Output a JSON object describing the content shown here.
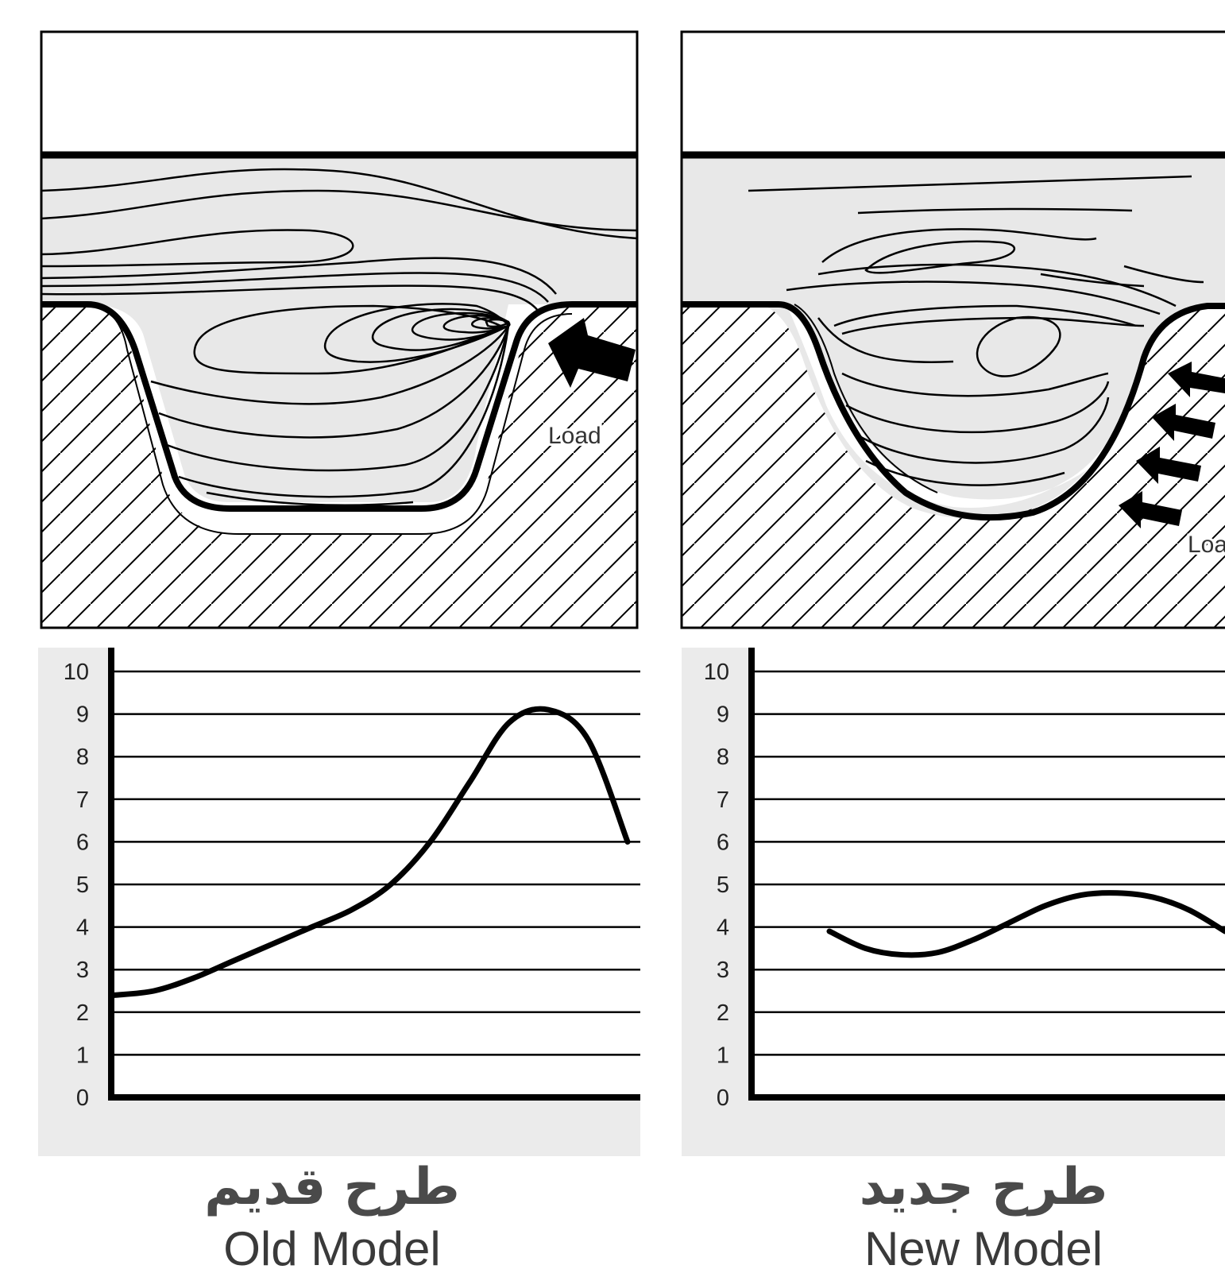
{
  "panels": [
    {
      "id": "old",
      "caption_fa": "طرح قدیم",
      "caption_en": "Old Model",
      "load_label": "Load"
    },
    {
      "id": "new",
      "caption_fa": "طرح جدید",
      "caption_en": "New Model",
      "load_label": "Load"
    }
  ],
  "chart_data": [
    {
      "type": "line",
      "title": "",
      "xlabel": "",
      "ylabel": "",
      "ylim": [
        0,
        10
      ],
      "yticks": [
        0,
        1,
        2,
        3,
        4,
        5,
        6,
        7,
        8,
        9,
        10
      ],
      "grid": true,
      "series": [
        {
          "values": [
            2.4,
            2.5,
            2.8,
            3.2,
            3.6,
            4.0,
            4.4,
            5.0,
            6.0,
            7.4,
            8.8,
            9.1,
            8.4,
            6.0
          ]
        }
      ]
    },
    {
      "type": "line",
      "title": "",
      "xlabel": "",
      "ylabel": "",
      "ylim": [
        0,
        10
      ],
      "yticks": [
        0,
        1,
        2,
        3,
        4,
        5,
        6,
        7,
        8,
        9,
        10
      ],
      "grid": true,
      "series": [
        {
          "values": [
            3.9,
            3.5,
            3.35,
            3.4,
            3.7,
            4.1,
            4.5,
            4.75,
            4.8,
            4.7,
            4.4,
            3.9
          ]
        }
      ]
    }
  ],
  "colors": {
    "line": "#000000",
    "fluid_fill": "#e8e8e8",
    "chart_bg": "#ebebeb",
    "caption": "#444444"
  }
}
